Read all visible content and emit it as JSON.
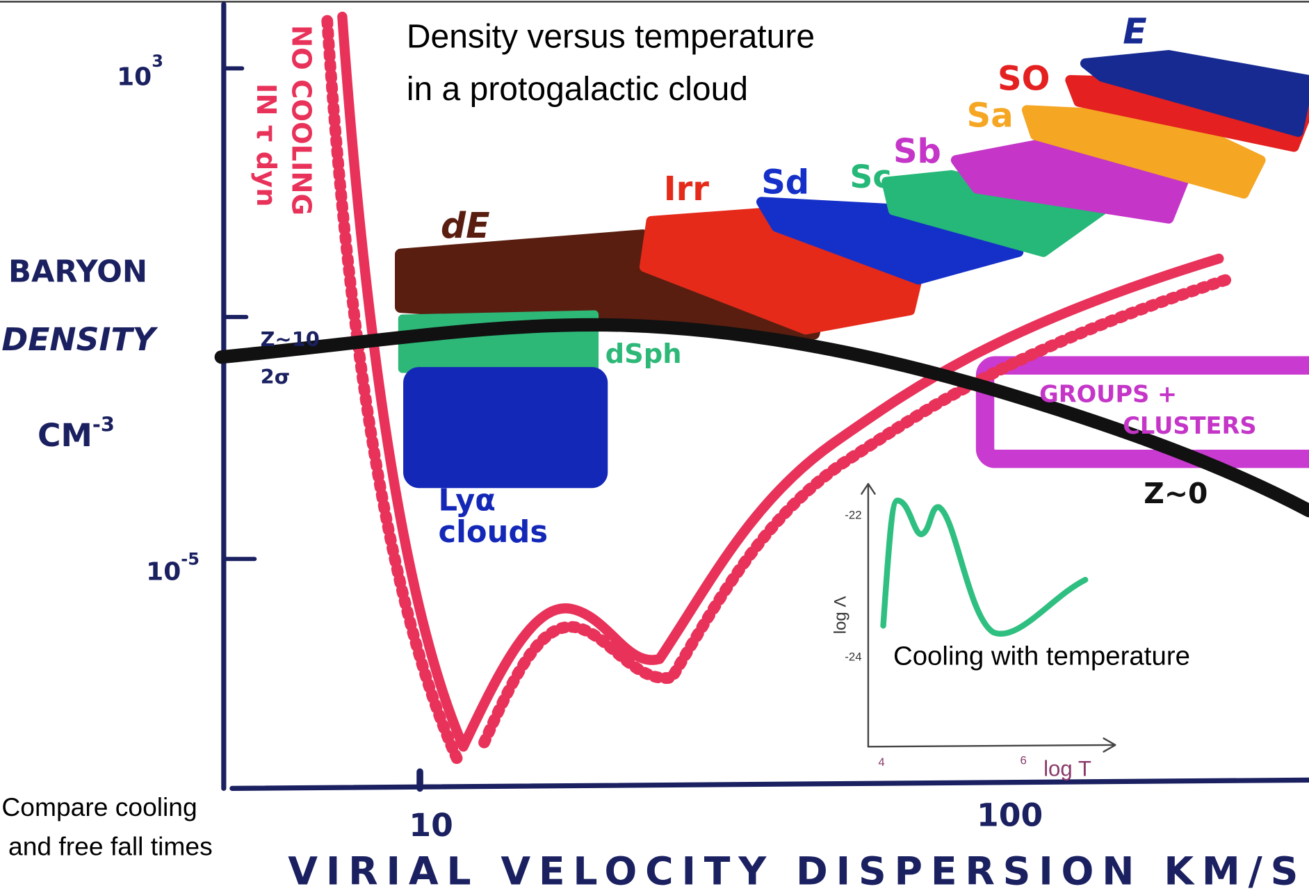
{
  "title": [
    "Density versus temperature",
    "in a protogalactic cloud"
  ],
  "y_axis": {
    "label": [
      "BARYON",
      "DENSITY",
      {
        "base": "CM",
        "sup": "-3"
      }
    ],
    "ticks": [
      {
        "base": "10",
        "sup": "3"
      },
      {
        "base": "10",
        "sup": "-5"
      }
    ]
  },
  "x_axis": {
    "label": "VIRIAL VELOCITY DISPERSION KM/S",
    "ticks": [
      "10",
      "100"
    ]
  },
  "regions": {
    "dE": "dE",
    "Irr": "Irr",
    "Sd": "Sd",
    "Sc": "Sc",
    "Sb": "Sb",
    "Sa": "Sa",
    "SO": "SO",
    "E": "E",
    "dSph": "dSph",
    "lya": [
      "Lyα",
      "clouds"
    ],
    "groups": [
      "GROUPS +",
      "CLUSTERS"
    ]
  },
  "no_cooling": [
    "NO COOLING",
    "IN τ dyn"
  ],
  "z10": [
    "Z~10",
    "2σ"
  ],
  "z0": "Z~0",
  "inset": {
    "caption": "Cooling with temperature",
    "y_label": "log Λ",
    "x_label": "log T",
    "y_ticks": [
      "-22",
      "-24"
    ],
    "x_ticks": [
      "4",
      "6"
    ]
  },
  "caption": [
    "Compare cooling",
    "and free fall times"
  ]
}
